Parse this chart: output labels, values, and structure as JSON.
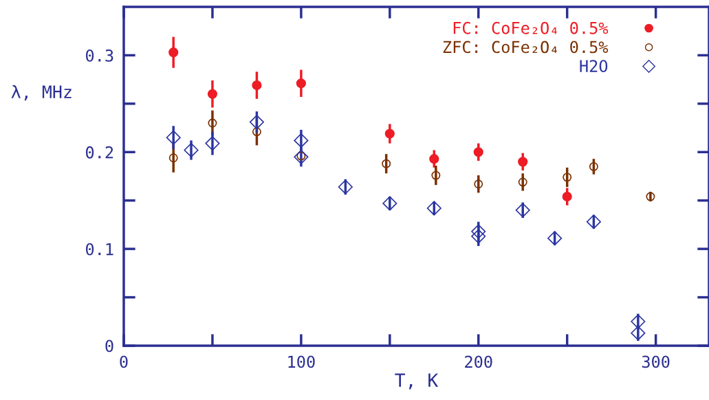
{
  "chart_data": {
    "type": "scatter",
    "xlabel": "T, K",
    "ylabel": "λ, MHz",
    "xlim": [
      0,
      330
    ],
    "ylim": [
      0,
      0.35
    ],
    "xticks": [
      0,
      100,
      200,
      300
    ],
    "yticks": [
      0,
      0.1,
      0.2,
      0.3
    ],
    "legend": "top right",
    "grid": false,
    "series": [
      {
        "name": "FC: CoFe₂O₄ 0.5%",
        "color": "#ee1c25",
        "marker": "circle",
        "x": [
          28,
          50,
          75,
          100,
          150,
          175,
          200,
          225,
          250
        ],
        "values": [
          0.303,
          0.26,
          0.269,
          0.271,
          0.219,
          0.193,
          0.2,
          0.19,
          0.154
        ],
        "errors": [
          0.016,
          0.014,
          0.014,
          0.014,
          0.01,
          0.009,
          0.009,
          0.009,
          0.009
        ]
      },
      {
        "name": "ZFC: CoFe₂O₄ 0.5%",
        "color": "#7a3000",
        "marker": "circle",
        "x": [
          28,
          50,
          75,
          100,
          148,
          176,
          200,
          225,
          250,
          265,
          297
        ],
        "values": [
          0.194,
          0.23,
          0.221,
          0.196,
          0.188,
          0.176,
          0.167,
          0.169,
          0.174,
          0.185,
          0.154
        ],
        "errors": [
          0.015,
          0.013,
          0.014,
          null,
          0.01,
          0.01,
          0.009,
          0.009,
          0.01,
          0.008,
          0.005
        ]
      },
      {
        "name": "H2O",
        "color": "#2b35a0",
        "marker": "diamond",
        "x": [
          28,
          38,
          50,
          75,
          100,
          100,
          125,
          150,
          175,
          200,
          200,
          225,
          243,
          265,
          290,
          290
        ],
        "values": [
          0.215,
          0.202,
          0.209,
          0.231,
          0.212,
          0.195,
          0.164,
          0.147,
          0.142,
          0.118,
          0.113,
          0.14,
          0.111,
          0.128,
          0.025,
          0.013
        ],
        "errors": [
          0.012,
          0.01,
          0.012,
          0.011,
          0.011,
          0.01,
          0.008,
          0.007,
          0.007,
          0.01,
          0.01,
          0.008,
          0.007,
          0.007,
          0.008,
          0.008
        ]
      }
    ]
  }
}
